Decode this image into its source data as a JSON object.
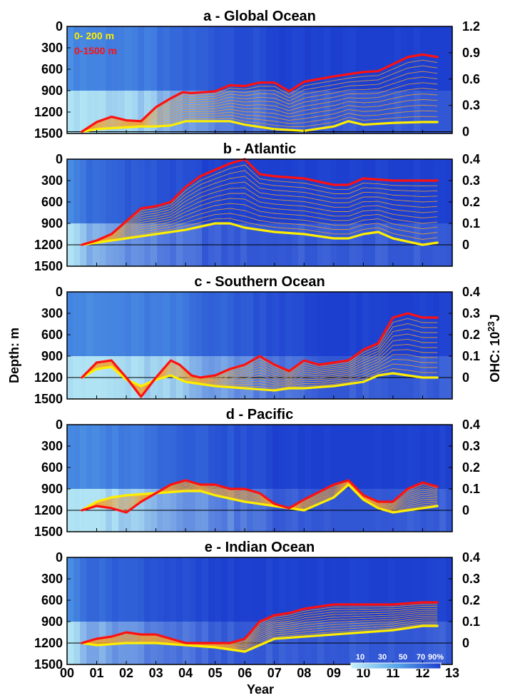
{
  "figure": {
    "xlabel": "Year",
    "ylabel_left": "Depth: m",
    "ylabel_right": "OHC: 10",
    "ylabel_right_sup": "23",
    "ylabel_right_unit": "J",
    "legend": {
      "shallow": "0-  200 m",
      "deep": "0-1500 m"
    },
    "colorbar_labels": [
      "10",
      "30",
      "50",
      "70",
      "90%"
    ],
    "colors": {
      "shallow": "#ffee00",
      "deep": "#ff1010",
      "band": "#f0a030",
      "background_dark": "#1d3fd0",
      "background_light": "#b8ecf4"
    }
  },
  "chart_data": [
    {
      "type": "line",
      "title": "a - Global Ocean",
      "x_range": [
        0,
        13
      ],
      "x_ticks": [
        "00",
        "01",
        "02",
        "03",
        "04",
        "05",
        "06",
        "07",
        "08",
        "09",
        "10",
        "11",
        "12",
        "13"
      ],
      "depth_ticks": [
        "0",
        "300",
        "600",
        "900",
        "1200",
        "1500"
      ],
      "ohc_ticks": [
        "1.2",
        "0.9",
        "0.6",
        "0.3",
        "0"
      ],
      "ohc_range": [
        -0.02,
        1.2
      ],
      "bg_light_years": [
        0,
        3.0
      ],
      "series": [
        {
          "name": "0-  200 m",
          "x": [
            0.5,
            1.0,
            1.5,
            2.0,
            2.5,
            3.0,
            3.5,
            4.0,
            5.0,
            5.5,
            6.0,
            7.0,
            8.0,
            9.0,
            9.5,
            10.0,
            11.0,
            12.0,
            12.5
          ],
          "y": [
            0.0,
            0.03,
            0.04,
            0.05,
            0.06,
            0.06,
            0.07,
            0.12,
            0.12,
            0.12,
            0.08,
            0.03,
            0.01,
            0.06,
            0.12,
            0.08,
            0.1,
            0.11,
            0.11
          ]
        },
        {
          "name": "0-1500 m",
          "x": [
            0.5,
            1.0,
            1.5,
            2.0,
            2.5,
            3.0,
            3.5,
            3.9,
            4.2,
            5.0,
            5.5,
            6.0,
            6.5,
            7.0,
            7.5,
            8.0,
            9.0,
            10.0,
            10.5,
            11.0,
            11.5,
            12.0,
            12.5
          ],
          "y": [
            0.0,
            0.11,
            0.17,
            0.13,
            0.12,
            0.28,
            0.38,
            0.45,
            0.44,
            0.46,
            0.53,
            0.52,
            0.56,
            0.56,
            0.46,
            0.57,
            0.63,
            0.68,
            0.69,
            0.77,
            0.85,
            0.88,
            0.85
          ]
        }
      ]
    },
    {
      "type": "line",
      "title": "b - Atlantic",
      "x_range": [
        0,
        13
      ],
      "x_ticks": [
        "00",
        "01",
        "02",
        "03",
        "04",
        "05",
        "06",
        "07",
        "08",
        "09",
        "10",
        "11",
        "12",
        "13"
      ],
      "depth_ticks": [
        "0",
        "300",
        "600",
        "900",
        "1200",
        "1500"
      ],
      "ohc_ticks": [
        "0.4",
        "0.3",
        "0.2",
        "0.1",
        "0"
      ],
      "ohc_range": [
        -0.1,
        0.4
      ],
      "bg_light_years": [
        0,
        0.6
      ],
      "series": [
        {
          "name": "0-  200 m",
          "x": [
            0.5,
            1.0,
            2.0,
            3.0,
            4.0,
            5.0,
            5.5,
            6.0,
            7.0,
            8.0,
            9.0,
            9.5,
            10.0,
            10.5,
            11.0,
            12.0,
            12.5
          ],
          "y": [
            0.0,
            0.01,
            0.03,
            0.05,
            0.07,
            0.1,
            0.1,
            0.08,
            0.06,
            0.05,
            0.03,
            0.03,
            0.05,
            0.06,
            0.03,
            0.0,
            0.01
          ]
        },
        {
          "name": "0-1500 m",
          "x": [
            0.5,
            1.0,
            1.5,
            2.0,
            2.5,
            3.0,
            3.5,
            4.0,
            4.5,
            5.0,
            5.5,
            6.0,
            6.5,
            7.0,
            8.0,
            9.0,
            9.5,
            10.0,
            11.0,
            12.0,
            12.5
          ],
          "y": [
            0.0,
            0.02,
            0.05,
            0.11,
            0.17,
            0.18,
            0.2,
            0.27,
            0.32,
            0.35,
            0.38,
            0.4,
            0.33,
            0.32,
            0.31,
            0.28,
            0.28,
            0.31,
            0.3,
            0.3,
            0.3
          ]
        }
      ]
    },
    {
      "type": "line",
      "title": "c - Southern Ocean",
      "x_range": [
        0,
        13
      ],
      "x_ticks": [
        "00",
        "01",
        "02",
        "03",
        "04",
        "05",
        "06",
        "07",
        "08",
        "09",
        "10",
        "11",
        "12",
        "13"
      ],
      "depth_ticks": [
        "0",
        "300",
        "600",
        "900",
        "1200",
        "1500"
      ],
      "ohc_ticks": [
        "0.4",
        "0.3",
        "0.2",
        "0.1",
        "0"
      ],
      "ohc_range": [
        -0.1,
        0.4
      ],
      "bg_light_years": [
        0,
        4.2
      ],
      "series": [
        {
          "name": "0-  200 m",
          "x": [
            0.5,
            1.0,
            1.5,
            2.0,
            2.5,
            3.0,
            3.5,
            4.0,
            5.0,
            6.0,
            7.0,
            7.5,
            8.0,
            9.0,
            10.0,
            10.5,
            11.0,
            11.5,
            12.0,
            12.5
          ],
          "y": [
            0.0,
            0.04,
            0.05,
            -0.01,
            -0.04,
            -0.01,
            0.01,
            -0.02,
            -0.04,
            -0.05,
            -0.06,
            -0.05,
            -0.05,
            -0.04,
            -0.02,
            0.01,
            0.02,
            0.01,
            0.0,
            0.0
          ]
        },
        {
          "name": "0-1500 m",
          "x": [
            0.5,
            1.0,
            1.5,
            2.0,
            2.5,
            3.0,
            3.5,
            3.8,
            4.2,
            4.5,
            5.0,
            5.5,
            6.0,
            6.5,
            7.0,
            7.5,
            8.0,
            8.5,
            9.0,
            9.5,
            10.0,
            10.5,
            11.0,
            11.5,
            12.0,
            12.5
          ],
          "y": [
            0.0,
            0.07,
            0.08,
            0.0,
            -0.09,
            0.0,
            0.08,
            0.06,
            0.01,
            0.0,
            0.01,
            0.04,
            0.06,
            0.1,
            0.06,
            0.03,
            0.08,
            0.06,
            0.07,
            0.08,
            0.13,
            0.16,
            0.28,
            0.3,
            0.28,
            0.28
          ]
        }
      ]
    },
    {
      "type": "line",
      "title": "d - Pacific",
      "x_range": [
        0,
        13
      ],
      "x_ticks": [
        "00",
        "01",
        "02",
        "03",
        "04",
        "05",
        "06",
        "07",
        "08",
        "09",
        "10",
        "11",
        "12",
        "13"
      ],
      "depth_ticks": [
        "0",
        "300",
        "600",
        "900",
        "1200",
        "1500"
      ],
      "ohc_ticks": [
        "0.4",
        "0.3",
        "0.2",
        "0.1",
        "0"
      ],
      "ohc_range": [
        -0.1,
        0.4
      ],
      "bg_light_years": [
        0,
        3.0
      ],
      "series": [
        {
          "name": "0-  200 m",
          "x": [
            0.5,
            1.0,
            1.5,
            2.0,
            3.0,
            4.0,
            4.5,
            5.0,
            6.0,
            7.0,
            8.0,
            9.0,
            9.5,
            10.0,
            10.5,
            11.0,
            11.5,
            12.0,
            12.5
          ],
          "y": [
            0.0,
            0.04,
            0.06,
            0.07,
            0.08,
            0.09,
            0.09,
            0.07,
            0.04,
            0.02,
            0.0,
            0.06,
            0.12,
            0.05,
            0.01,
            -0.01,
            0.0,
            0.01,
            0.02
          ]
        },
        {
          "name": "0-1500 m",
          "x": [
            0.5,
            1.0,
            1.5,
            2.0,
            2.5,
            3.0,
            3.5,
            4.0,
            4.5,
            5.0,
            5.5,
            6.0,
            6.5,
            7.0,
            7.5,
            8.0,
            9.0,
            9.5,
            10.0,
            10.5,
            11.0,
            11.5,
            12.0,
            12.5
          ],
          "y": [
            0.0,
            0.02,
            0.01,
            -0.01,
            0.04,
            0.08,
            0.12,
            0.14,
            0.12,
            0.12,
            0.1,
            0.1,
            0.08,
            0.03,
            0.01,
            0.05,
            0.12,
            0.14,
            0.07,
            0.04,
            0.04,
            0.1,
            0.13,
            0.11
          ]
        }
      ]
    },
    {
      "type": "line",
      "title": "e - Indian Ocean",
      "x_range": [
        0,
        13
      ],
      "x_ticks": [
        "00",
        "01",
        "02",
        "03",
        "04",
        "05",
        "06",
        "07",
        "08",
        "09",
        "10",
        "11",
        "12",
        "13"
      ],
      "depth_ticks": [
        "0",
        "300",
        "600",
        "900",
        "1200",
        "1500"
      ],
      "ohc_ticks": [
        "0.4",
        "0.3",
        "0.2",
        "0.1",
        "0"
      ],
      "ohc_range": [
        -0.1,
        0.4
      ],
      "bg_light_years": [
        0,
        0.6
      ],
      "series": [
        {
          "name": "0-  200 m",
          "x": [
            0.5,
            1.0,
            2.0,
            3.0,
            4.0,
            5.0,
            5.5,
            6.0,
            6.5,
            7.0,
            8.0,
            9.0,
            10.0,
            11.0,
            12.0,
            12.5
          ],
          "y": [
            0.0,
            -0.01,
            0.0,
            0.0,
            -0.01,
            -0.02,
            -0.03,
            -0.04,
            -0.01,
            0.02,
            0.03,
            0.04,
            0.05,
            0.06,
            0.08,
            0.08
          ]
        },
        {
          "name": "0-1500 m",
          "x": [
            0.5,
            1.0,
            1.5,
            2.0,
            2.5,
            3.0,
            3.5,
            4.0,
            5.0,
            5.5,
            6.0,
            6.5,
            7.0,
            7.5,
            8.0,
            9.0,
            10.0,
            11.0,
            12.0,
            12.5
          ],
          "y": [
            0.0,
            0.02,
            0.03,
            0.05,
            0.04,
            0.04,
            0.02,
            0.0,
            0.0,
            0.0,
            0.02,
            0.1,
            0.13,
            0.14,
            0.16,
            0.18,
            0.18,
            0.18,
            0.19,
            0.19
          ]
        }
      ]
    }
  ]
}
